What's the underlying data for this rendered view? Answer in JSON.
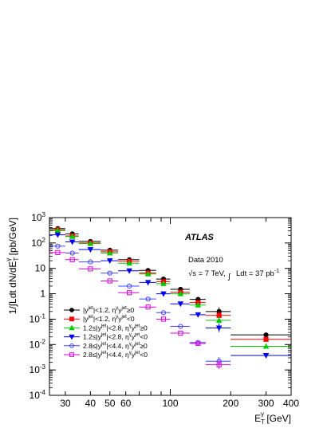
{
  "chart_data": {
    "type": "scatter",
    "xlabel": "E_T^γ [GeV]",
    "ylabel": "1/∫Ldt  dN/dE_T^γ [pb/GeV]",
    "x_scale": "log",
    "y_scale": "log",
    "xlim": [
      25,
      400
    ],
    "ylim": [
      0.0001,
      1000
    ],
    "grid": false,
    "legend_position": "bottom-left",
    "x_ticks": [
      {
        "value": 30,
        "label": "30"
      },
      {
        "value": 40,
        "label": "40"
      },
      {
        "value": 50,
        "label": "50"
      },
      {
        "value": 60,
        "label": "60"
      },
      {
        "value": 100,
        "label": "100"
      },
      {
        "value": 200,
        "label": "200"
      },
      {
        "value": 300,
        "label": "300"
      },
      {
        "value": 400,
        "label": "400"
      }
    ],
    "y_ticks": [
      {
        "exp": -4,
        "base": "10",
        "sup": "-4"
      },
      {
        "exp": -3,
        "base": "10",
        "sup": "-3"
      },
      {
        "exp": -2,
        "base": "10",
        "sup": "-2"
      },
      {
        "exp": -1,
        "base": "10",
        "sup": "-1"
      },
      {
        "exp": 0,
        "base": "1",
        "sup": ""
      },
      {
        "exp": 1,
        "base": "10",
        "sup": ""
      },
      {
        "exp": 2,
        "base": "10",
        "sup": "2"
      },
      {
        "exp": 3,
        "base": "10",
        "sup": "3"
      }
    ],
    "bins": [
      [
        25,
        30
      ],
      [
        30,
        35
      ],
      [
        35,
        45
      ],
      [
        45,
        55
      ],
      [
        55,
        70
      ],
      [
        70,
        85
      ],
      [
        85,
        100
      ],
      [
        100,
        125
      ],
      [
        125,
        150
      ],
      [
        150,
        200
      ],
      [
        200,
        400
      ]
    ],
    "annotations": {
      "experiment": "ATLAS",
      "dataset": "Data 2010",
      "energy": "√s = 7 TeV,",
      "lumi_label": "Ldt = 37 pb",
      "lumi_sup": "-1"
    },
    "series": [
      {
        "name_parts": [
          "|y",
          "jet",
          "|<1.2, η",
          "γ",
          "y",
          "jet",
          "≥0"
        ],
        "color": "#000000",
        "marker": "circle-filled",
        "x": [
          27.5,
          32.5,
          40,
          50,
          62.5,
          77.5,
          92.5,
          112.5,
          137.5,
          175,
          300
        ],
        "values": [
          370,
          230,
          115,
          52,
          22,
          8.3,
          3.8,
          1.5,
          0.6,
          0.2,
          0.024
        ]
      },
      {
        "name_parts": [
          "|y",
          "jet",
          "|<1.2, η",
          "γ",
          "y",
          "jet",
          "<0"
        ],
        "color": "#ff0000",
        "marker": "square-filled",
        "x": [
          27.5,
          32.5,
          40,
          50,
          62.5,
          77.5,
          92.5,
          112.5,
          137.5,
          175,
          300
        ],
        "values": [
          330,
          190,
          100,
          45,
          19,
          6.6,
          3.0,
          1.15,
          0.45,
          0.14,
          0.016
        ]
      },
      {
        "name_parts": [
          "1.2≤|y",
          "jet",
          "|<2.8, η",
          "γ",
          "y",
          "jet",
          "≥0"
        ],
        "color": "#00cc00",
        "marker": "triangle-up-filled",
        "x": [
          27.5,
          32.5,
          40,
          50,
          62.5,
          77.5,
          92.5,
          112.5,
          137.5,
          175,
          300
        ],
        "values": [
          310,
          180,
          95,
          40,
          16,
          6.0,
          2.5,
          1.0,
          0.36,
          0.09,
          0.0085
        ]
      },
      {
        "name_parts": [
          "1.2≤|y",
          "jet",
          "|<2.8, η",
          "γ",
          "y",
          "jet",
          "<0"
        ],
        "color": "#0000ee",
        "marker": "triangle-down-filled",
        "x": [
          27.5,
          32.5,
          40,
          50,
          62.5,
          77.5,
          92.5,
          112.5,
          137.5,
          175,
          300
        ],
        "values": [
          210,
          110,
          55,
          20,
          8.0,
          2.8,
          1.0,
          0.4,
          0.15,
          0.045,
          0.0037
        ]
      },
      {
        "name_parts": [
          "2.8≤|y",
          "jet",
          "|<4.4, η",
          "γ",
          "y",
          "jet",
          "≥0"
        ],
        "color": "#4444ff",
        "marker": "circle-open",
        "x": [
          27.5,
          32.5,
          40,
          50,
          62.5,
          77.5,
          92.5,
          112.5,
          137.5,
          175
        ],
        "values": [
          75,
          40,
          18,
          6.5,
          2.0,
          0.62,
          0.18,
          0.052,
          0.012,
          0.0022
        ]
      },
      {
        "name_parts": [
          "2.8≤|y",
          "jet",
          "|<4.4, η",
          "γ",
          "y",
          "jet",
          "<0"
        ],
        "color": "#dd00dd",
        "marker": "square-open",
        "x": [
          27.5,
          32.5,
          40,
          50,
          62.5,
          77.5,
          92.5,
          112.5,
          137.5,
          175
        ],
        "values": [
          42,
          22,
          9.5,
          3.2,
          1.1,
          0.3,
          0.1,
          0.028,
          0.011,
          0.0016
        ]
      }
    ]
  }
}
